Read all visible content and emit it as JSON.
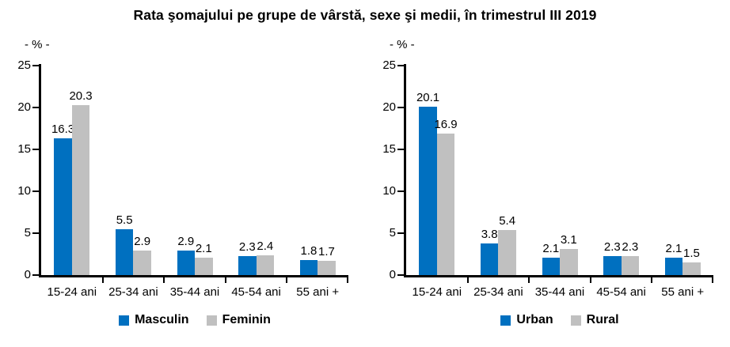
{
  "title": "Rata şomajului pe grupe de vârstă, sexe şi medii, în trimestrul III 2019",
  "colors": {
    "series_blue": "#0070C0",
    "series_gray": "#C0C0C0",
    "axis": "#000000",
    "text": "#000000",
    "background": "#FFFFFF"
  },
  "chart_data": [
    {
      "type": "bar",
      "name": "by-sex",
      "unit_label": "- % -",
      "categories": [
        "15-24 ani",
        "25-34 ani",
        "35-44 ani",
        "45-54 ani",
        "55 ani +"
      ],
      "series": [
        {
          "name": "Masculin",
          "color": "#0070C0",
          "values": [
            16.3,
            5.5,
            2.9,
            2.3,
            1.8
          ]
        },
        {
          "name": "Feminin",
          "color": "#C0C0C0",
          "values": [
            20.3,
            2.9,
            2.1,
            2.4,
            1.7
          ]
        }
      ],
      "ylim": [
        0,
        25
      ],
      "yticks": [
        0,
        5,
        10,
        15,
        20,
        25
      ],
      "grid": false,
      "data_labels": true,
      "legend_position": "bottom"
    },
    {
      "type": "bar",
      "name": "by-area",
      "unit_label": "- % -",
      "categories": [
        "15-24 ani",
        "25-34 ani",
        "35-44 ani",
        "45-54 ani",
        "55 ani +"
      ],
      "series": [
        {
          "name": "Urban",
          "color": "#0070C0",
          "values": [
            20.1,
            3.8,
            2.1,
            2.3,
            2.1
          ]
        },
        {
          "name": "Rural",
          "color": "#C0C0C0",
          "values": [
            16.9,
            5.4,
            3.1,
            2.3,
            1.5
          ]
        }
      ],
      "ylim": [
        0,
        25
      ],
      "yticks": [
        0,
        5,
        10,
        15,
        20,
        25
      ],
      "grid": false,
      "data_labels": true,
      "legend_position": "bottom"
    }
  ]
}
